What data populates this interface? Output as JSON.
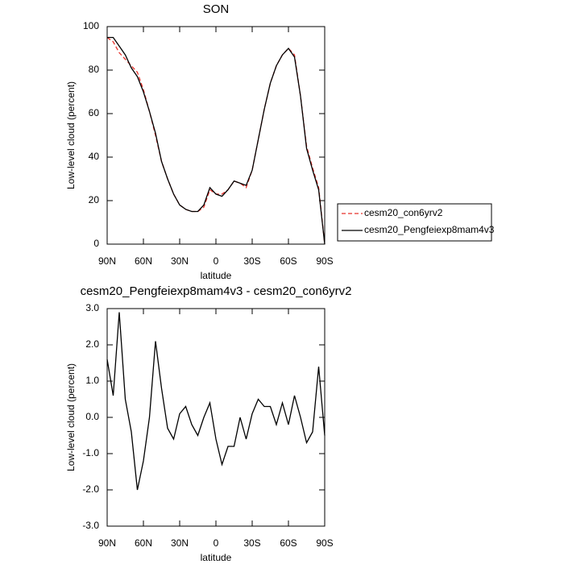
{
  "chart_data": [
    {
      "type": "line",
      "title": "SON",
      "x_label": "latitude",
      "y_label": "Low-level cloud (percent)",
      "x": [
        90,
        85,
        80,
        75,
        70,
        65,
        60,
        55,
        50,
        45,
        40,
        35,
        30,
        25,
        20,
        15,
        10,
        5,
        0,
        -5,
        -10,
        -15,
        -20,
        -25,
        -30,
        -35,
        -40,
        -45,
        -50,
        -55,
        -60,
        -65,
        -70,
        -75,
        -80,
        -85,
        -90
      ],
      "series": [
        {
          "name": "cesm20_con6yrv2",
          "color": "#e8302a",
          "line_style": "dashed",
          "values": [
            95,
            93,
            88,
            85,
            82,
            79,
            71,
            61,
            50,
            38,
            30,
            23,
            18,
            16,
            15,
            15,
            17,
            25,
            23,
            23,
            25,
            29,
            28,
            26,
            34,
            48,
            62,
            74,
            82,
            87,
            90,
            87,
            68,
            45,
            35,
            26,
            0
          ]
        },
        {
          "name": "cesm20_Pengfeiexp8mam4v3",
          "color": "#000000",
          "line_style": "solid",
          "values": [
            95,
            95,
            91,
            87,
            81,
            77,
            70,
            61,
            51,
            38,
            30,
            23,
            18,
            16,
            15,
            15,
            18,
            26,
            23,
            22,
            25,
            29,
            28,
            27,
            34,
            48,
            62,
            74,
            82,
            87,
            90,
            86,
            68,
            44,
            34,
            25,
            0
          ]
        }
      ],
      "xlim": [
        90,
        -90
      ],
      "xticks": [
        {
          "value": 90,
          "label": "90N"
        },
        {
          "value": 60,
          "label": "60N"
        },
        {
          "value": 30,
          "label": "30N"
        },
        0,
        {
          "value": -30,
          "label": "30S"
        },
        {
          "value": -60,
          "label": "60S"
        },
        {
          "value": -90,
          "label": "90S"
        }
      ],
      "ylim": [
        0,
        100
      ],
      "yticks": [
        0,
        20,
        40,
        60,
        80,
        100
      ],
      "legend": "right"
    },
    {
      "type": "line",
      "title": "cesm20_Pengfeiexp8mam4v3 - cesm20_con6yrv2",
      "x_label": "latitude",
      "y_label": "Low-level cloud (percent)",
      "x": [
        90,
        85,
        80,
        75,
        70,
        65,
        60,
        55,
        50,
        45,
        40,
        35,
        30,
        25,
        20,
        15,
        10,
        5,
        0,
        -5,
        -10,
        -15,
        -20,
        -25,
        -30,
        -35,
        -40,
        -45,
        -50,
        -55,
        -60,
        -65,
        -70,
        -75,
        -80,
        -85,
        -90
      ],
      "series": [
        {
          "color": "#000000",
          "line_style": "solid",
          "values": [
            1.6,
            0.6,
            2.9,
            0.5,
            -0.4,
            -2.0,
            -1.2,
            0.0,
            2.1,
            0.8,
            -0.3,
            -0.6,
            0.1,
            0.3,
            -0.2,
            -0.5,
            0.0,
            0.4,
            -0.6,
            -1.3,
            -0.8,
            -0.8,
            0.0,
            -0.6,
            0.1,
            0.5,
            0.3,
            0.3,
            -0.2,
            0.4,
            -0.2,
            0.6,
            0.0,
            -0.7,
            -0.4,
            1.4,
            -0.5
          ]
        }
      ],
      "xlim": [
        90,
        -90
      ],
      "xticks": [
        {
          "value": 90,
          "label": "90N"
        },
        {
          "value": 60,
          "label": "60N"
        },
        {
          "value": 30,
          "label": "30N"
        },
        0,
        {
          "value": -30,
          "label": "30S"
        },
        {
          "value": -60,
          "label": "60S"
        },
        {
          "value": -90,
          "label": "90S"
        }
      ],
      "ylim": [
        -3,
        3
      ],
      "yticks": [
        {
          "value": -3,
          "label": "-3.0"
        },
        {
          "value": -2,
          "label": "-2.0"
        },
        {
          "value": -1,
          "label": "-1.0"
        },
        {
          "value": 0,
          "label": "0.0"
        },
        {
          "value": 1,
          "label": "1.0"
        },
        {
          "value": 2,
          "label": "2.0"
        },
        {
          "value": 3,
          "label": "3.0"
        }
      ]
    }
  ]
}
